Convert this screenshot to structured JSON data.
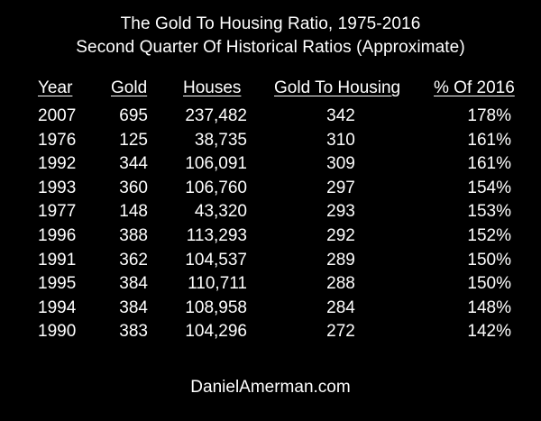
{
  "chart_data": {
    "type": "table",
    "title": "The Gold To Housing Ratio, 1975-2016",
    "subtitle": "Second Quarter Of Historical Ratios (Approximate)",
    "columns": [
      "Year",
      "Gold",
      "Houses",
      "Gold To Housing",
      "% Of 2016"
    ],
    "rows": [
      [
        "2007",
        "695",
        "237,482",
        "342",
        "178%"
      ],
      [
        "1976",
        "125",
        "38,735",
        "310",
        "161%"
      ],
      [
        "1992",
        "344",
        "106,091",
        "309",
        "161%"
      ],
      [
        "1993",
        "360",
        "106,760",
        "297",
        "154%"
      ],
      [
        "1977",
        "148",
        "43,320",
        "293",
        "153%"
      ],
      [
        "1996",
        "388",
        "113,293",
        "292",
        "152%"
      ],
      [
        "1991",
        "362",
        "104,537",
        "289",
        "150%"
      ],
      [
        "1995",
        "384",
        "110,711",
        "288",
        "150%"
      ],
      [
        "1994",
        "384",
        "108,958",
        "284",
        "148%"
      ],
      [
        "1990",
        "383",
        "104,296",
        "272",
        "142%"
      ]
    ],
    "footer": "DanielAmerman.com"
  },
  "colors": {
    "background": "#000000",
    "text": "#ffffff"
  }
}
